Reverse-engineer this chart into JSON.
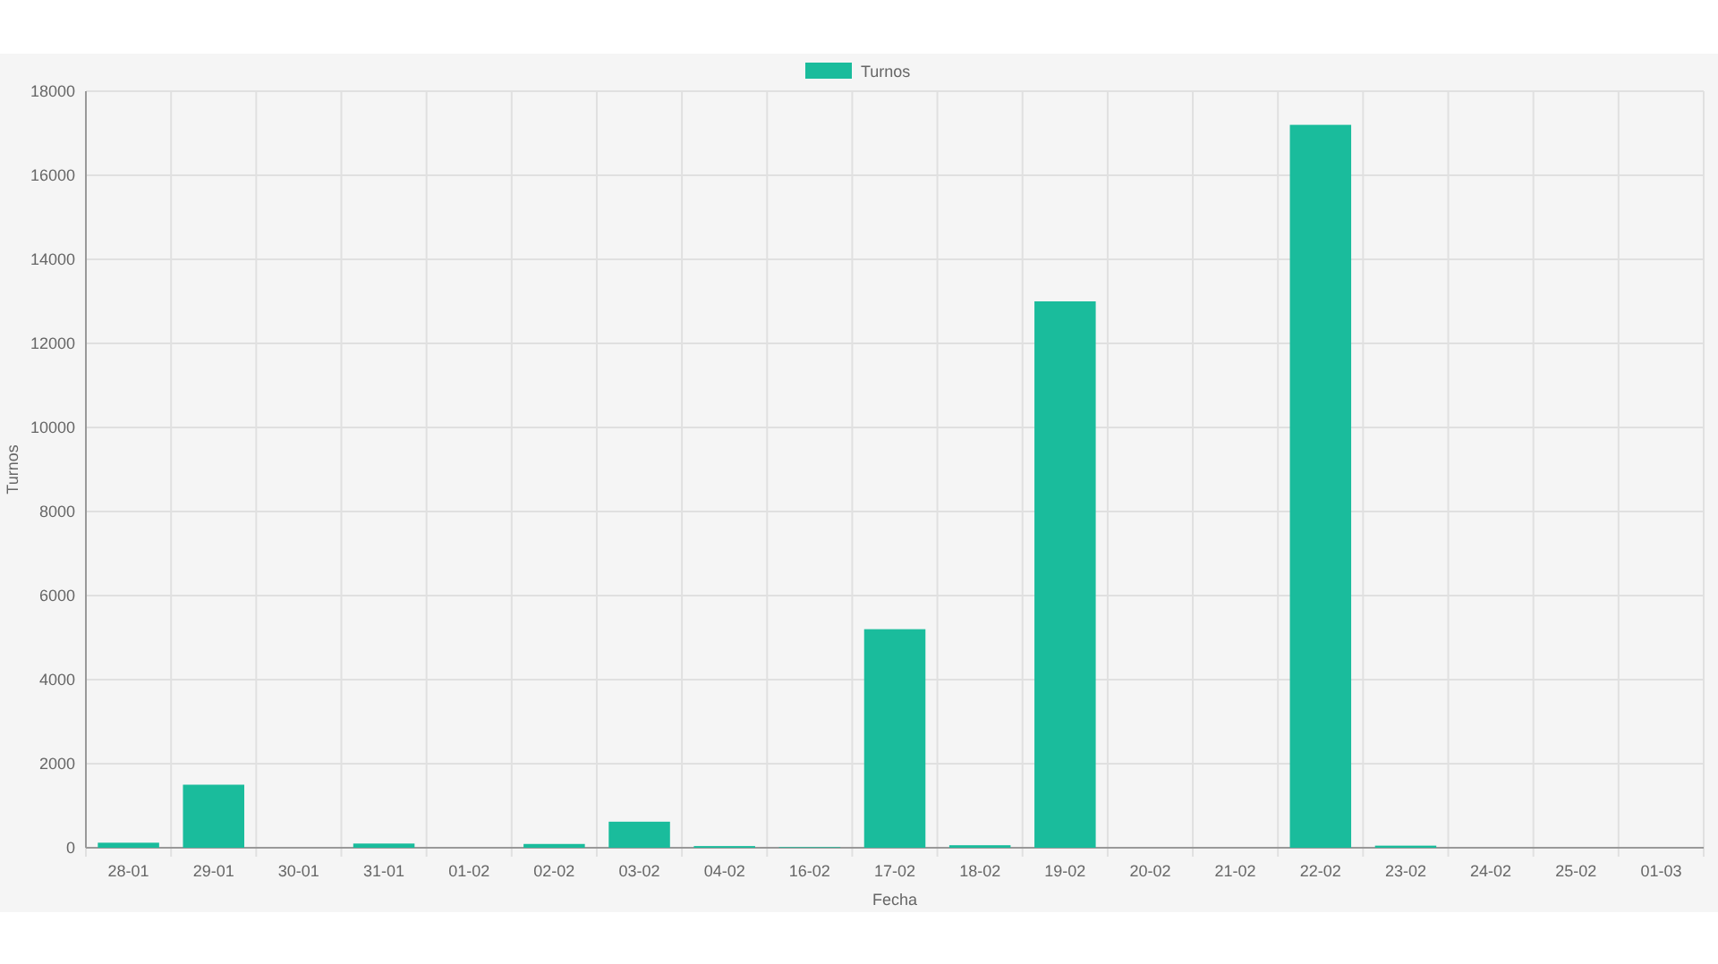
{
  "chart_data": {
    "type": "bar",
    "xlabel": "Fecha",
    "ylabel": "Turnos",
    "categories": [
      "28-01",
      "29-01",
      "30-01",
      "31-01",
      "01-02",
      "02-02",
      "03-02",
      "04-02",
      "16-02",
      "17-02",
      "18-02",
      "19-02",
      "20-02",
      "21-02",
      "22-02",
      "23-02",
      "24-02",
      "25-02",
      "01-03"
    ],
    "series": [
      {
        "name": "Turnos",
        "color": "#1abc9c",
        "values": [
          120,
          1500,
          null,
          100,
          null,
          90,
          620,
          40,
          15,
          5200,
          60,
          13000,
          null,
          null,
          17200,
          50,
          0,
          0,
          0
        ]
      }
    ],
    "ylim": [
      0,
      18000
    ],
    "yticks": [
      0,
      2000,
      4000,
      6000,
      8000,
      10000,
      12000,
      14000,
      16000,
      18000
    ],
    "grid": true,
    "legend": "top"
  }
}
